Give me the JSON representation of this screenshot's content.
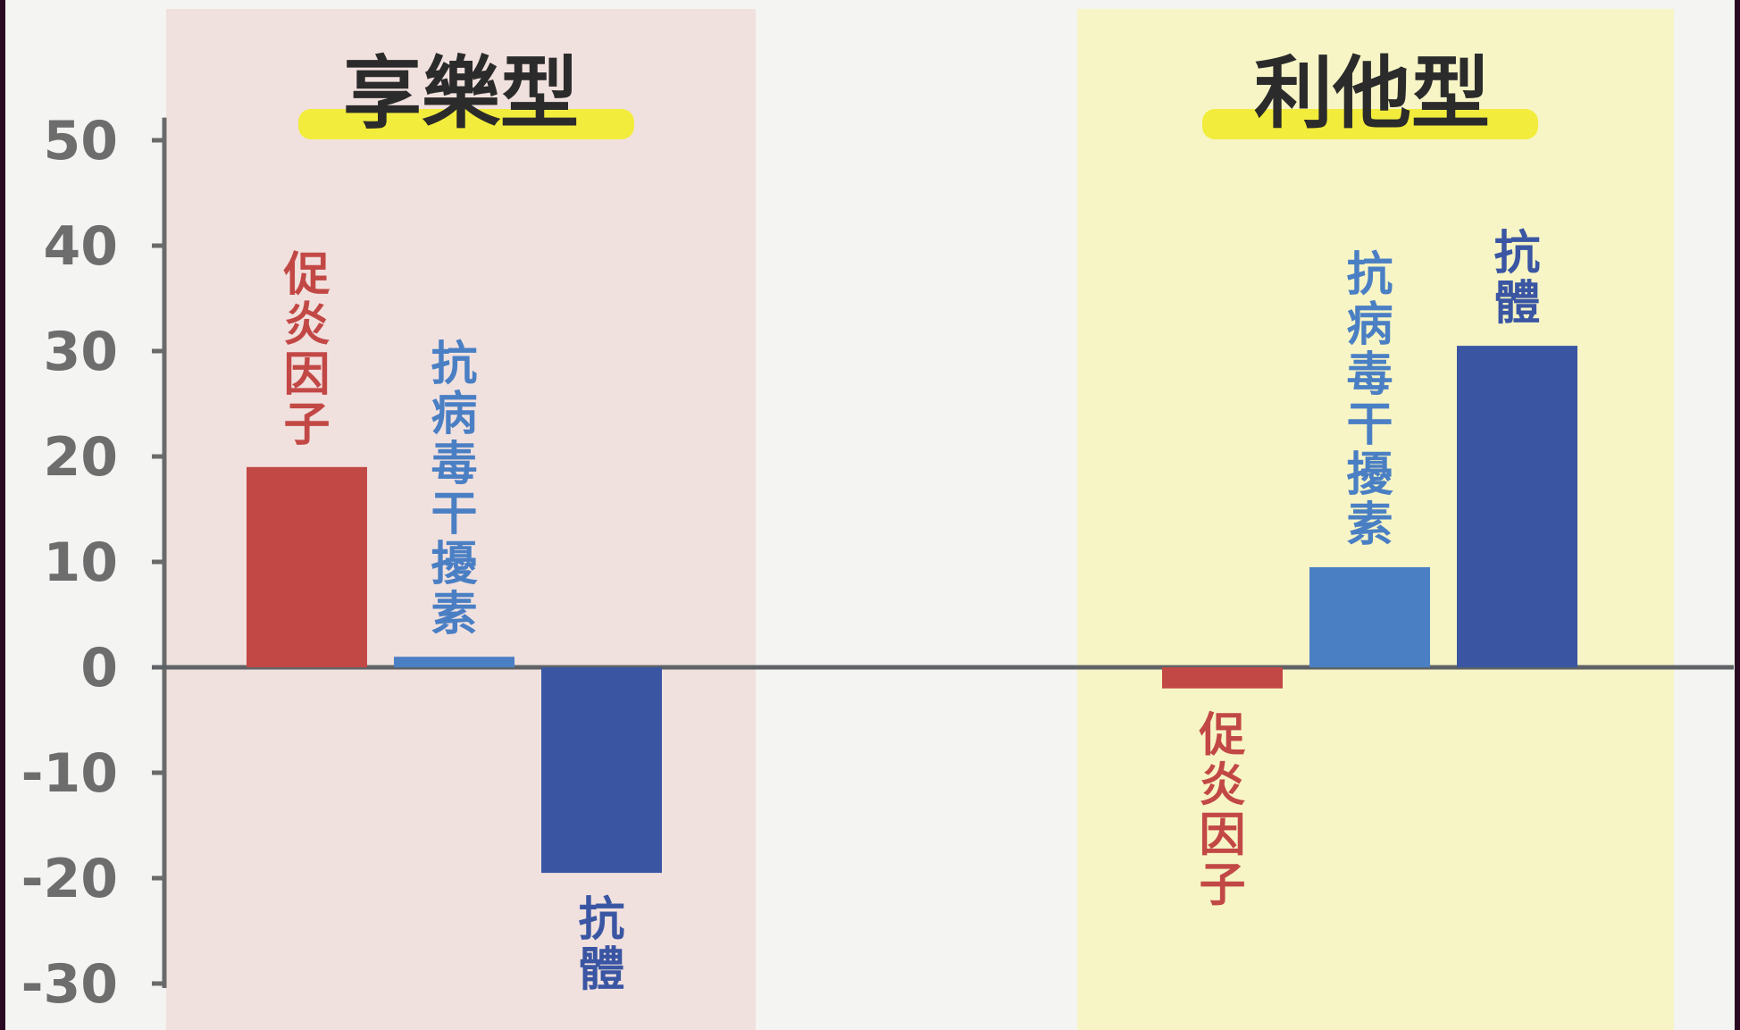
{
  "chart_data": {
    "type": "bar",
    "yticks": [
      "50",
      "40",
      "30",
      "20",
      "10",
      "0",
      "-10",
      "-20",
      "-30"
    ],
    "ylim": [
      -33,
      53
    ],
    "grid": false,
    "groups": [
      {
        "title": "享樂型",
        "background": "#f1e1de",
        "highlight": "#f2ec3c",
        "bars": [
          {
            "label": "促炎因子",
            "value": 19,
            "color": "#c24846",
            "label_color": "#c24846"
          },
          {
            "label": "抗病毒干擾素",
            "value": 1,
            "color": "#4a7fc4",
            "label_color": "#4a7fc4"
          },
          {
            "label": "抗體",
            "value": -19.5,
            "color": "#3a56a3",
            "label_color": "#3a56a3"
          }
        ]
      },
      {
        "title": "利他型",
        "background": "#f7f5c6",
        "highlight": "#f2ec3c",
        "bars": [
          {
            "label": "促炎因子",
            "value": -2,
            "color": "#c24846",
            "label_color": "#c24846"
          },
          {
            "label": "抗病毒干擾素",
            "value": 9.5,
            "color": "#4a7fc4",
            "label_color": "#4a7fc4"
          },
          {
            "label": "抗體",
            "value": 30.5,
            "color": "#3a56a3",
            "label_color": "#3a56a3"
          }
        ]
      }
    ]
  }
}
